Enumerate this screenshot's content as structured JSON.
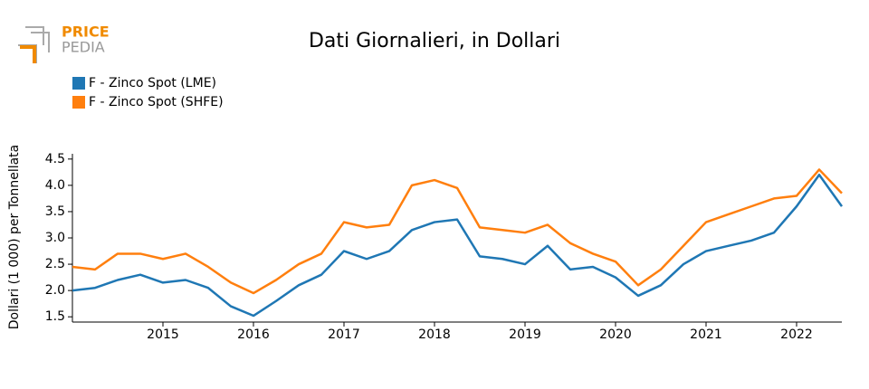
{
  "logo": {
    "top": "PRICE",
    "bottom": "PEDIA"
  },
  "chart_data": {
    "type": "line",
    "title": "Dati Giornalieri, in Dollari",
    "y_label": "Dollari (1 000) per Tonnellata",
    "x": [
      2014,
      2014.25,
      2014.5,
      2014.75,
      2015,
      2015.25,
      2015.5,
      2015.75,
      2016,
      2016.25,
      2016.5,
      2016.75,
      2017,
      2017.25,
      2017.5,
      2017.75,
      2018,
      2018.25,
      2018.5,
      2018.75,
      2019,
      2019.25,
      2019.5,
      2019.75,
      2020,
      2020.25,
      2020.5,
      2020.75,
      2021,
      2021.25,
      2021.5,
      2021.75,
      2022,
      2022.25,
      2022.5
    ],
    "series": [
      {
        "name": "F - Zinco Spot (LME)",
        "color": "#1f77b4",
        "values": [
          2.0,
          2.05,
          2.2,
          2.3,
          2.15,
          2.2,
          2.05,
          1.7,
          1.52,
          1.8,
          2.1,
          2.3,
          2.75,
          2.6,
          2.75,
          3.15,
          3.3,
          3.35,
          2.65,
          2.6,
          2.5,
          2.85,
          2.4,
          2.45,
          2.25,
          1.9,
          2.1,
          2.5,
          2.75,
          2.85,
          2.95,
          3.1,
          3.6,
          4.2,
          3.6
        ]
      },
      {
        "name": "F - Zinco Spot (SHFE)",
        "color": "#ff7f0e",
        "values": [
          2.45,
          2.4,
          2.7,
          2.7,
          2.6,
          2.7,
          2.45,
          2.15,
          1.95,
          2.2,
          2.5,
          2.7,
          3.3,
          3.2,
          3.25,
          4.0,
          4.1,
          3.95,
          3.2,
          3.15,
          3.1,
          3.25,
          2.9,
          2.7,
          2.55,
          2.1,
          2.4,
          2.85,
          3.3,
          3.45,
          3.6,
          3.75,
          3.8,
          4.3,
          3.85
        ]
      }
    ],
    "xlim": [
      2014,
      2022.5
    ],
    "xticks": [
      2015,
      2016,
      2017,
      2018,
      2019,
      2020,
      2021,
      2022
    ],
    "ylim": [
      1.4,
      4.6
    ],
    "yticks": [
      1.5,
      {
        "value": 2,
        "label": "2.0"
      },
      2.5,
      {
        "value": 3,
        "label": "3.0"
      },
      3.5,
      {
        "value": 4,
        "label": "4.0"
      },
      4.5
    ],
    "grid": false
  }
}
